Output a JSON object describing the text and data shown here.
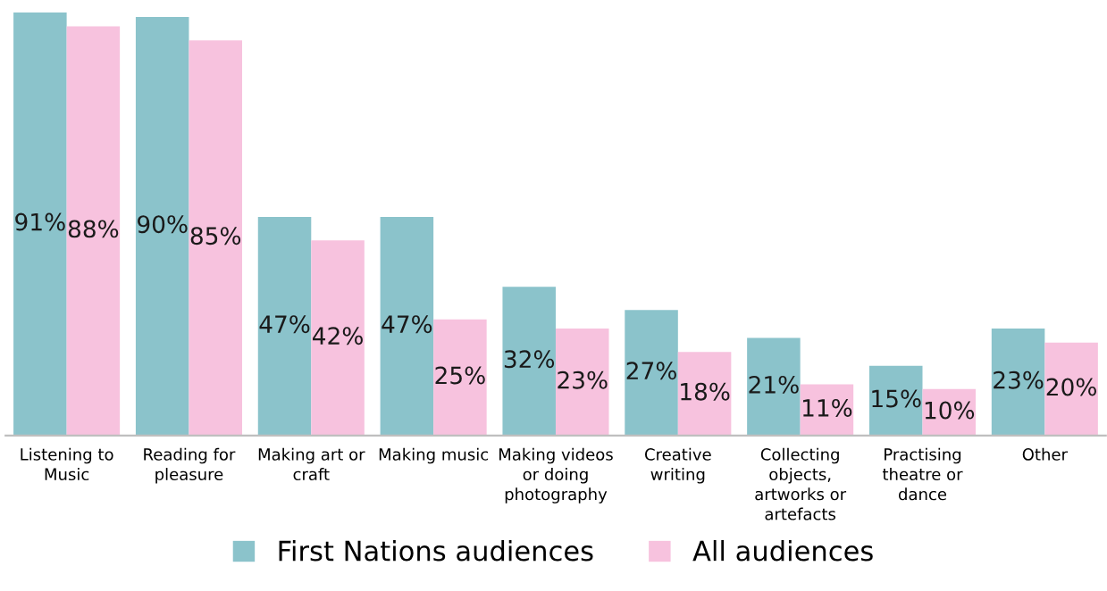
{
  "chart_data": {
    "type": "bar",
    "categories": [
      "Listening to\nMusic",
      "Reading for\npleasure",
      "Making art or\ncraft",
      "Making music",
      "Making videos\nor doing\nphotography",
      "Creative\nwriting",
      "Collecting\nobjects,\nartworks or\nartefacts",
      "Practising\ntheatre or\ndance",
      "Other"
    ],
    "series": [
      {
        "name": "First Nations audiences",
        "color": "#8bc3cb",
        "values": [
          91,
          90,
          47,
          47,
          32,
          27,
          21,
          15,
          23
        ],
        "value_labels": [
          "91%",
          "90%",
          "47%",
          "47%",
          "32%",
          "27%",
          "21%",
          "15%",
          "23%"
        ]
      },
      {
        "name": "All audiences",
        "color": "#f7c2de",
        "values": [
          88,
          85,
          42,
          25,
          23,
          18,
          11,
          10,
          20
        ],
        "value_labels": [
          "88%",
          "85%",
          "42%",
          "25%",
          "23%",
          "18%",
          "11%",
          "10%",
          "20%"
        ]
      }
    ],
    "legend": "bottom"
  }
}
